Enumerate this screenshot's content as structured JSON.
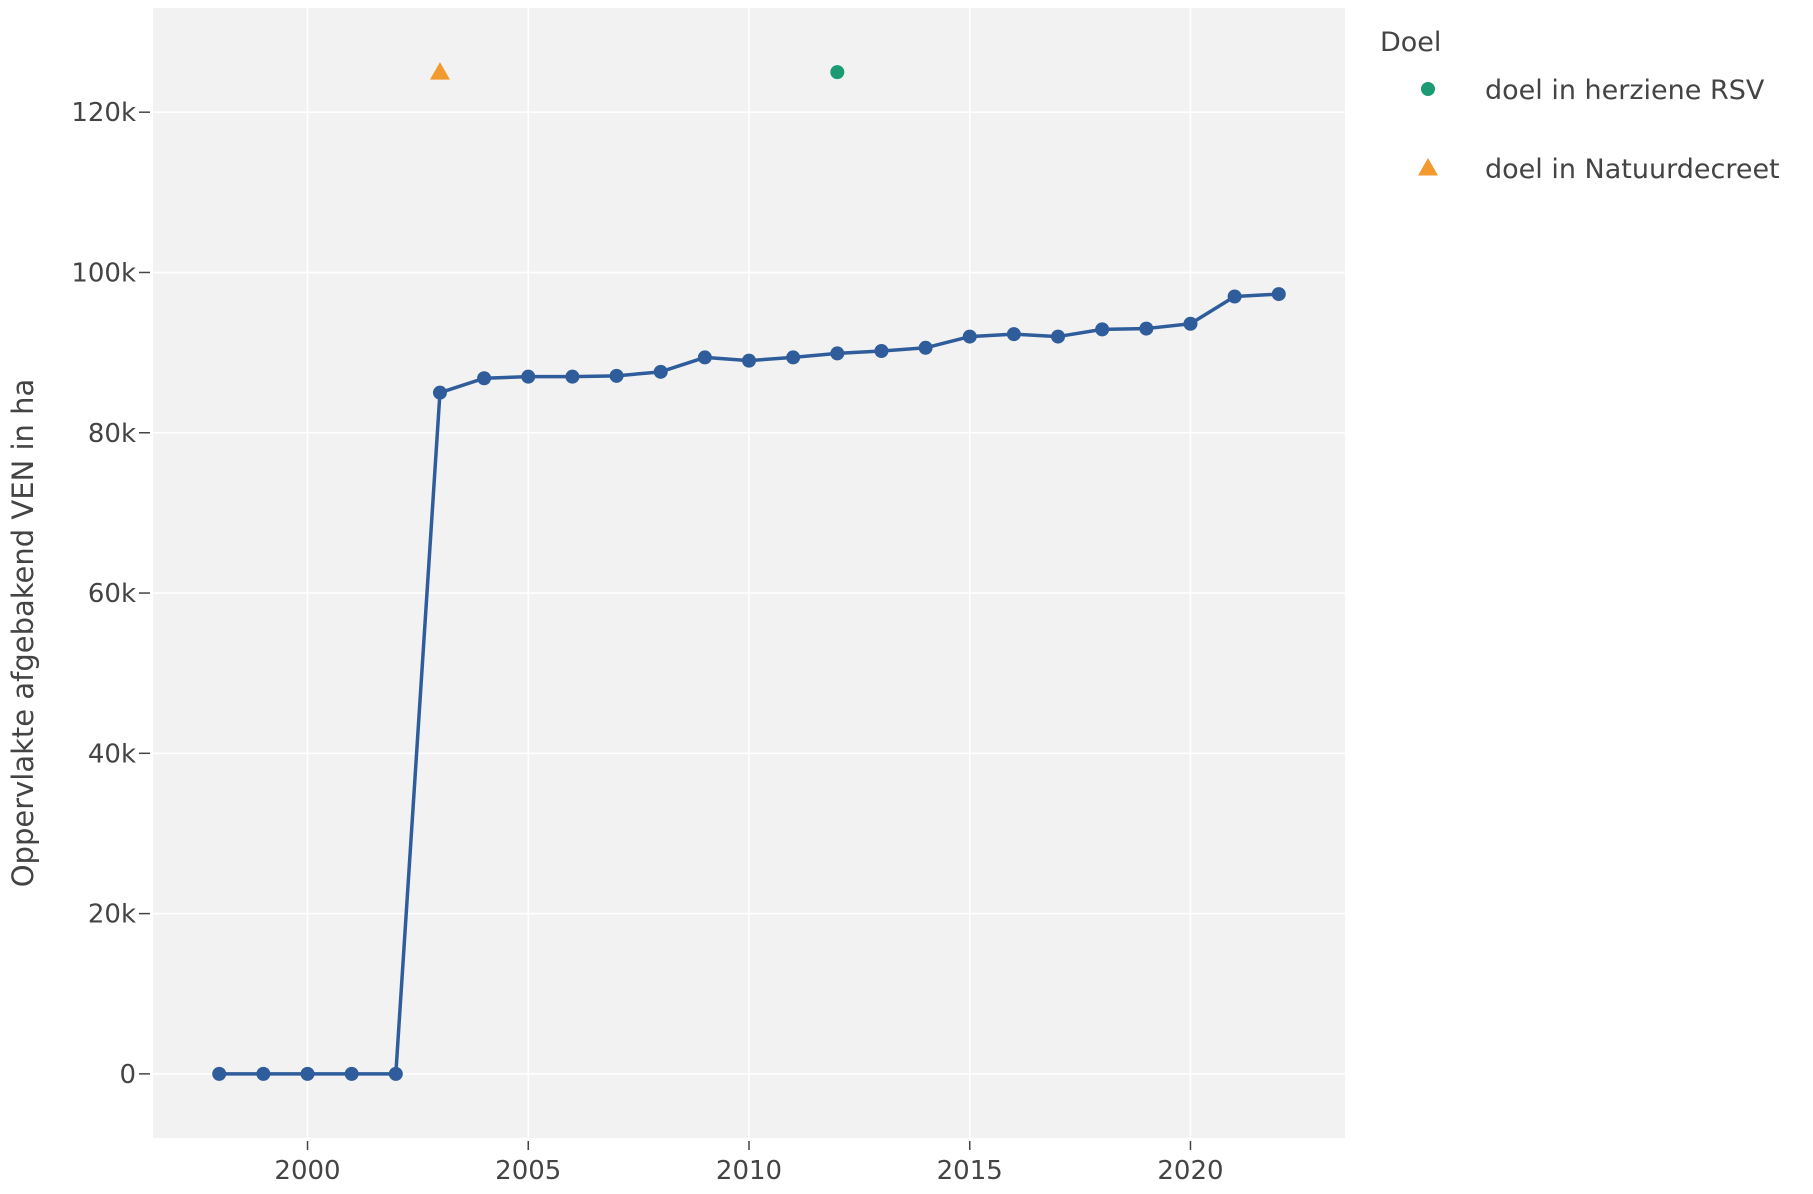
{
  "chart_data": {
    "type": "line",
    "title": "",
    "xlabel": "",
    "ylabel": "Oppervlakte afgebakend VEN in ha",
    "xlim": [
      1996.5,
      2023.5
    ],
    "ylim": [
      -8000,
      133000
    ],
    "x_ticks": [
      2000,
      2005,
      2010,
      2015,
      2020
    ],
    "x_tick_labels": [
      "2000",
      "2005",
      "2010",
      "2015",
      "2020"
    ],
    "y_ticks": [
      0,
      20000,
      40000,
      60000,
      80000,
      100000,
      120000
    ],
    "y_tick_labels": [
      "0",
      "20k",
      "40k",
      "60k",
      "80k",
      "100k",
      "120k"
    ],
    "grid": true,
    "plot_background": "#f2f2f2",
    "series": [
      {
        "type": "line",
        "color": "#2f5d9b",
        "x": [
          1998,
          1999,
          2000,
          2001,
          2002,
          2003,
          2004,
          2005,
          2006,
          2007,
          2008,
          2009,
          2010,
          2011,
          2012,
          2013,
          2014,
          2015,
          2016,
          2017,
          2018,
          2019,
          2020,
          2021,
          2022
        ],
        "y": [
          0,
          0,
          0,
          0,
          0,
          85000,
          86800,
          87000,
          87000,
          87100,
          87600,
          89400,
          89000,
          89400,
          89900,
          90200,
          90600,
          92000,
          92300,
          92000,
          92900,
          93000,
          93600,
          97000,
          97300
        ]
      },
      {
        "name": "doel in herziene RSV",
        "type": "scatter",
        "marker": "circle",
        "color": "#1a9b73",
        "x": [
          2012
        ],
        "y": [
          125000
        ]
      },
      {
        "name": "doel in Natuurdecreet",
        "type": "scatter",
        "marker": "triangle",
        "color": "#f29a2e",
        "x": [
          2003
        ],
        "y": [
          125000
        ]
      }
    ],
    "legend": {
      "title": "Doel",
      "placement": "right",
      "items": [
        "doel in herziene RSV",
        "doel in Natuurdecreet"
      ]
    }
  }
}
